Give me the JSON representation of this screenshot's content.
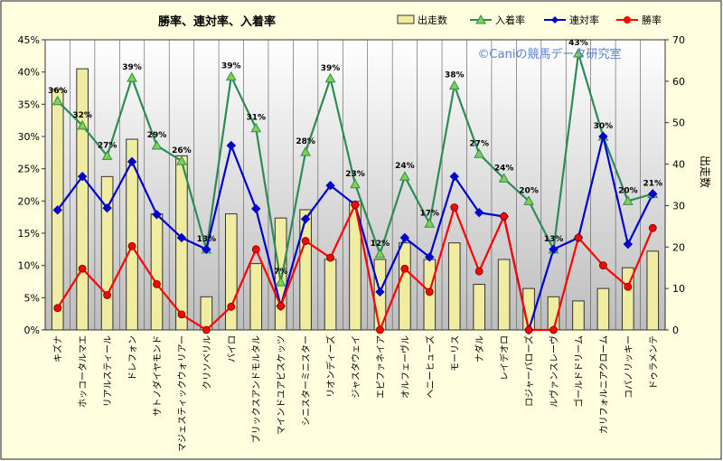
{
  "chart_data": {
    "type": "bar+line",
    "title": "勝率、連対率、入着率",
    "watermark": "©Caniの競馬データ研究室",
    "y2label": "出走数",
    "ylim": [
      0,
      45
    ],
    "y2lim": [
      0,
      70
    ],
    "ytick_labels": [
      "0%",
      "5%",
      "10%",
      "15%",
      "20%",
      "25%",
      "30%",
      "35%",
      "40%",
      "45%"
    ],
    "y2tick_labels": [
      "0",
      "10",
      "20",
      "30",
      "40",
      "50",
      "60",
      "70"
    ],
    "grid": "vertical",
    "legend_position": "top-right",
    "categories": [
      "キズナ",
      "ホッコータルマエ",
      "リアルスティール",
      "ドレフォン",
      "サトノダイヤモンド",
      "マジェスティックウォリアー",
      "クリソベリル",
      "バイロ",
      "ブリックスアンドモルタル",
      "マインドユアビスケッツ",
      "シニスターミニスター",
      "リオンディーズ",
      "ジャスタウェイ",
      "エピファネイア",
      "オルフェーヴル",
      "ヘニーヒューズ",
      "モーリス",
      "ナダル",
      "レイデオロ",
      "ロジャーバローズ",
      "ルヴァンスレーヴ",
      "ゴールドドリーム",
      "カリフォルニアクローム",
      "コパノリッキー",
      "ドゥラメンテ"
    ],
    "series": [
      {
        "name": "出走数",
        "type": "bar",
        "axis": "y2",
        "color": "#f0eca0",
        "values": [
          58,
          63,
          37,
          46,
          28,
          42,
          8,
          28,
          16,
          27,
          29,
          17,
          31,
          17,
          21,
          17,
          21,
          11,
          17,
          10,
          8,
          7,
          10,
          15,
          19
        ]
      },
      {
        "name": "入着率",
        "type": "line",
        "axis": "y1",
        "color": "#2e8b57",
        "marker": "triangle",
        "values": [
          35.5,
          31.7,
          27.0,
          39.1,
          28.6,
          26.2,
          12.5,
          39.3,
          31.3,
          7.4,
          27.6,
          39.0,
          22.6,
          11.8,
          23.8,
          16.5,
          37.9,
          27.3,
          23.5,
          20.0,
          12.5,
          42.9,
          30.0,
          20.0,
          21.1
        ]
      },
      {
        "name": "連対率",
        "type": "line",
        "axis": "y1",
        "color": "#0000cc",
        "marker": "diamond",
        "values": [
          18.6,
          23.8,
          18.9,
          26.1,
          17.9,
          14.3,
          12.5,
          28.6,
          18.8,
          3.7,
          17.2,
          22.4,
          19.4,
          5.9,
          14.3,
          11.3,
          23.8,
          18.2,
          17.6,
          0.0,
          12.5,
          14.3,
          30.0,
          13.3,
          21.1
        ]
      },
      {
        "name": "勝率",
        "type": "line",
        "axis": "y1",
        "color": "#ff0000",
        "marker": "circle",
        "values": [
          3.4,
          9.5,
          5.4,
          13.0,
          7.1,
          2.4,
          0.0,
          3.6,
          12.5,
          3.7,
          13.8,
          11.2,
          19.4,
          0.0,
          9.5,
          5.9,
          19.0,
          9.1,
          17.6,
          0.0,
          0.0,
          14.3,
          10.0,
          6.7,
          15.8
        ]
      }
    ],
    "data_labels": {
      "series": "入着率",
      "values": [
        "36%",
        "32%",
        "27%",
        "39%",
        "29%",
        "26%",
        "13%",
        "39%",
        "31%",
        "7%",
        "28%",
        "39%",
        "23%",
        "12%",
        "24%",
        "17%",
        "38%",
        "27%",
        "24%",
        "20%",
        "13%",
        "43%",
        "30%",
        "20%",
        "21%"
      ]
    }
  }
}
